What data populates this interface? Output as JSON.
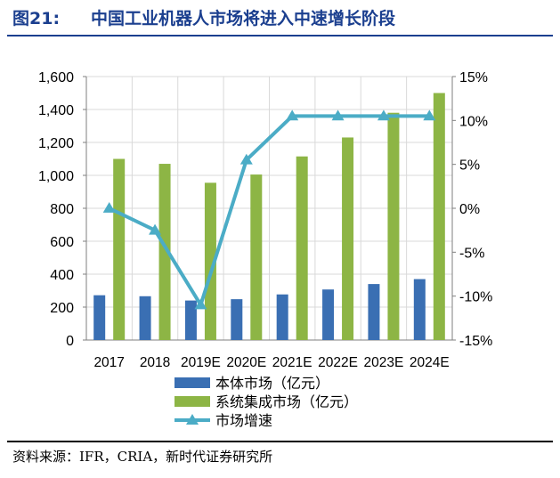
{
  "figure": {
    "label": "图21:",
    "title": "中国工业机器人市场将进入中速增长阶段",
    "source": "资料来源：IFR，CRIA，新时代证券研究所"
  },
  "chart_data": {
    "type": "bar",
    "categories": [
      "2017",
      "2018",
      "2019E",
      "2020E",
      "2021E",
      "2022E",
      "2023E",
      "2024E"
    ],
    "series": [
      {
        "name": "本体市场（亿元）",
        "type": "bar",
        "axis": "left",
        "color": "#3a6fb3",
        "values": [
          272,
          266,
          240,
          248,
          277,
          307,
          340,
          370
        ]
      },
      {
        "name": "系统集成市场（亿元）",
        "type": "bar",
        "axis": "left",
        "color": "#8db545",
        "values": [
          1100,
          1070,
          955,
          1005,
          1115,
          1230,
          1380,
          1500
        ]
      },
      {
        "name": "市场增速",
        "type": "line",
        "axis": "right",
        "color": "#4bacc6",
        "values": [
          0,
          -2.5,
          -11,
          5.5,
          10.5,
          10.5,
          10.5,
          10.5
        ]
      }
    ],
    "y_left": {
      "min": 0,
      "max": 1600,
      "step": 200,
      "ticks": [
        "0",
        "200",
        "400",
        "600",
        "800",
        "1,000",
        "1,200",
        "1,400",
        "1,600"
      ]
    },
    "y_right": {
      "min": -15,
      "max": 15,
      "step": 5,
      "ticks": [
        "-15%",
        "-10%",
        "-5%",
        "0%",
        "5%",
        "10%",
        "15%"
      ]
    },
    "grid": true,
    "legend_position": "bottom"
  }
}
